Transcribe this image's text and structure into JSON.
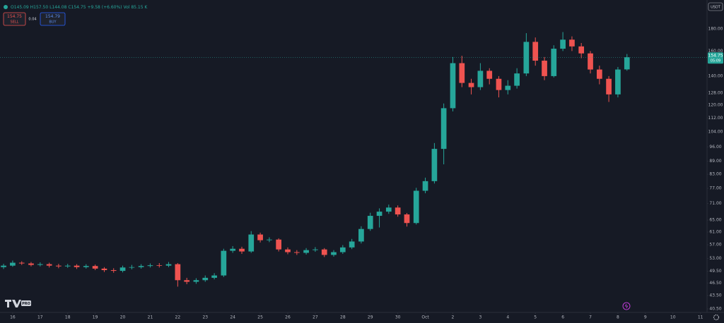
{
  "toolbar": {
    "ohlc": [
      "O145.09",
      "H157.50",
      "L144.08",
      "C154.75",
      "+9.58 (+6.60%)"
    ],
    "volume": "Vol 85.15 K",
    "sell_price": "154.75",
    "sell_label": "SELL",
    "spread": "0.04",
    "buy_price": "154.79",
    "buy_label": "BUY",
    "currency": "USDT",
    "logo_badge": "PRO"
  },
  "chart_data": {
    "type": "candlestick",
    "log": true,
    "up_color": "#26a69a",
    "down_color": "#ef5350",
    "countdown": "05:09",
    "x": [
      -0.33,
      0,
      0.33,
      0.67,
      1,
      1.33,
      1.67,
      2,
      2.33,
      2.67,
      3,
      3.33,
      3.67,
      4,
      4.33,
      4.67,
      5,
      5.33,
      5.67,
      6,
      6.33,
      6.67,
      7,
      7.33,
      7.67,
      8,
      8.33,
      8.67,
      9,
      9.33,
      9.67,
      10,
      10.33,
      10.67,
      11,
      11.33,
      11.67,
      12,
      12.33,
      12.67,
      13,
      13.33,
      13.67,
      14,
      14.33,
      14.67,
      15,
      15.33,
      15.67,
      16,
      16.33,
      16.67,
      17,
      17.33,
      17.67,
      18,
      18.33,
      18.67,
      19,
      19.33,
      19.67,
      20,
      20.33,
      20.67,
      21,
      21.33,
      21.67,
      22,
      22.33
    ],
    "open": [
      50.6,
      51.0,
      51.8,
      51.6,
      51.2,
      51.4,
      51.0,
      50.8,
      51.0,
      50.6,
      50.9,
      50.2,
      49.8,
      49.6,
      50.5,
      50.6,
      50.9,
      51.1,
      51.0,
      51.4,
      47.2,
      46.8,
      47.2,
      47.8,
      48.4,
      55.2,
      55.8,
      55.0,
      60.2,
      58.4,
      58.6,
      55.6,
      54.8,
      54.6,
      55.4,
      55.6,
      54.0,
      54.8,
      56.2,
      58.0,
      62.0,
      66.5,
      68.0,
      69.5,
      67.0,
      64.0,
      76.0,
      80.0,
      95.0,
      118.0,
      150.0,
      135.0,
      132.0,
      144.0,
      138.0,
      130.0,
      133.0,
      142.0,
      168.0,
      152.0,
      140.0,
      162.0,
      170.0,
      164.0,
      158.0,
      145.0,
      138.0,
      127.0,
      145.09
    ],
    "high": [
      51.5,
      52.4,
      52.2,
      52.0,
      51.9,
      51.8,
      51.5,
      51.5,
      51.4,
      51.4,
      51.3,
      50.6,
      50.3,
      51.0,
      51.2,
      51.4,
      51.6,
      51.7,
      52.0,
      51.7,
      47.8,
      47.7,
      48.4,
      49.0,
      55.8,
      56.6,
      56.4,
      61.3,
      60.8,
      59.3,
      59.0,
      56.2,
      55.4,
      56.0,
      56.3,
      56.0,
      55.4,
      56.9,
      58.8,
      62.9,
      67.6,
      69.2,
      70.6,
      70.3,
      67.5,
      77.2,
      81.5,
      98.0,
      121.0,
      155.0,
      156.0,
      138.0,
      150.0,
      146.0,
      140.0,
      137.0,
      146.0,
      176.0,
      172.0,
      155.0,
      165.0,
      177.0,
      173.0,
      167.0,
      160.0,
      148.0,
      140.0,
      147.0,
      157.5
    ],
    "low": [
      50.1,
      50.7,
      51.2,
      50.8,
      50.8,
      50.5,
      50.3,
      50.4,
      50.1,
      50.2,
      49.8,
      49.3,
      49.1,
      49.2,
      50.0,
      50.2,
      50.5,
      50.5,
      50.6,
      45.6,
      46.2,
      46.3,
      46.8,
      47.4,
      48.0,
      54.6,
      54.3,
      54.6,
      57.7,
      57.8,
      55.0,
      54.2,
      54.0,
      54.1,
      54.9,
      53.4,
      53.5,
      54.3,
      55.7,
      57.4,
      61.4,
      62.5,
      67.2,
      66.2,
      62.8,
      63.5,
      75.0,
      79.0,
      87.5,
      116.0,
      132.0,
      127.0,
      130.0,
      134.0,
      125.0,
      127.0,
      131.0,
      140.0,
      148.0,
      137.0,
      139.0,
      160.0,
      160.0,
      154.0,
      142.0,
      134.0,
      122.0,
      125.0,
      144.08
    ],
    "close": [
      51.0,
      51.8,
      51.6,
      51.2,
      51.4,
      51.0,
      50.8,
      51.0,
      50.6,
      50.9,
      50.2,
      49.8,
      49.6,
      50.5,
      50.6,
      50.9,
      51.1,
      51.0,
      51.4,
      47.2,
      46.8,
      47.2,
      47.8,
      48.4,
      55.2,
      55.8,
      55.0,
      60.2,
      58.4,
      58.6,
      55.6,
      54.8,
      54.6,
      55.4,
      55.6,
      54.0,
      54.8,
      56.2,
      58.0,
      62.0,
      66.5,
      68.0,
      69.5,
      67.0,
      64.0,
      76.0,
      80.0,
      95.0,
      118.0,
      150.0,
      135.0,
      132.0,
      144.0,
      138.0,
      130.0,
      133.0,
      142.0,
      168.0,
      152.0,
      140.0,
      162.0,
      170.0,
      164.0,
      158.0,
      145.0,
      138.0,
      127.0,
      145.0,
      154.75
    ],
    "xlim": [
      -0.46,
      25.24
    ],
    "xticks": [
      {
        "value": 0,
        "label": "16"
      },
      {
        "value": 1,
        "label": "17"
      },
      {
        "value": 2,
        "label": "18"
      },
      {
        "value": 3,
        "label": "19"
      },
      {
        "value": 4,
        "label": "20"
      },
      {
        "value": 5,
        "label": "21"
      },
      {
        "value": 6,
        "label": "22"
      },
      {
        "value": 7,
        "label": "23"
      },
      {
        "value": 8,
        "label": "24"
      },
      {
        "value": 9,
        "label": "25"
      },
      {
        "value": 10,
        "label": "26"
      },
      {
        "value": 11,
        "label": "27"
      },
      {
        "value": 12,
        "label": "28"
      },
      {
        "value": 13,
        "label": "29"
      },
      {
        "value": 14,
        "label": "30"
      },
      {
        "value": 15,
        "label": "Oct"
      },
      {
        "value": 16,
        "label": "2"
      },
      {
        "value": 17,
        "label": "3"
      },
      {
        "value": 18,
        "label": "4"
      },
      {
        "value": 19,
        "label": "5"
      },
      {
        "value": 20,
        "label": "6"
      },
      {
        "value": 21,
        "label": "7"
      },
      {
        "value": 22,
        "label": "8"
      },
      {
        "value": 23,
        "label": "9"
      },
      {
        "value": 24,
        "label": "10"
      },
      {
        "value": 25,
        "label": "11"
      }
    ],
    "ylim": [
      40.2,
      210
    ],
    "yticks": [
      {
        "value": 180,
        "label": "180.00"
      },
      {
        "value": 160,
        "label": "160.00"
      },
      {
        "value": 140,
        "label": "140.00"
      },
      {
        "value": 128,
        "label": "128.00"
      },
      {
        "value": 120,
        "label": "120.00"
      },
      {
        "value": 112,
        "label": "112.00"
      },
      {
        "value": 104,
        "label": "104.00"
      },
      {
        "value": 96,
        "label": "96.00"
      },
      {
        "value": 89,
        "label": "89.00"
      },
      {
        "value": 83,
        "label": "83.00"
      },
      {
        "value": 77,
        "label": "77.00"
      },
      {
        "value": 71,
        "label": "71.00"
      },
      {
        "value": 65,
        "label": "65.00"
      },
      {
        "value": 61,
        "label": "61.00"
      },
      {
        "value": 57,
        "label": "57.00"
      },
      {
        "value": 53,
        "label": "53.00"
      },
      {
        "value": 49.5,
        "label": "49.50"
      },
      {
        "value": 46.5,
        "label": "46.50"
      },
      {
        "value": 43.5,
        "label": "43.50"
      },
      {
        "value": 40.5,
        "label": "40.50"
      }
    ]
  }
}
